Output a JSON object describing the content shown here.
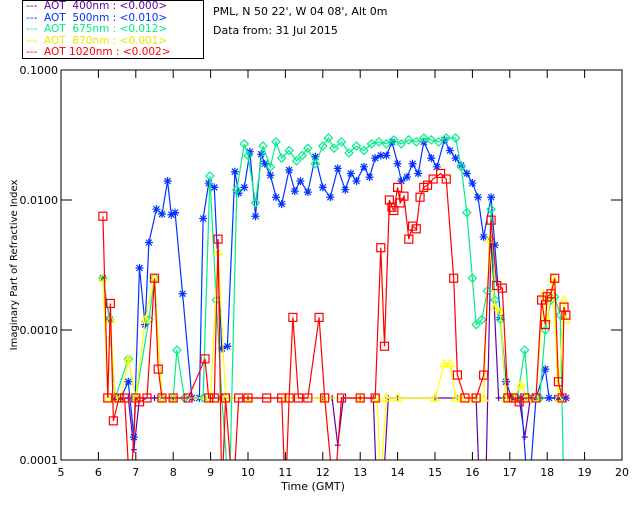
{
  "header": {
    "site": "PML, N 50 22', W 04 08', Alt 0m",
    "date": "Data from: 31 Jul 2015"
  },
  "colors": {
    "aot400": "#6600aa",
    "aot500": "#0033ff",
    "aot675": "#00ee88",
    "aot870": "#ffff00",
    "aot1020": "#ff0000"
  },
  "chart_data": {
    "type": "line",
    "title": "",
    "xlabel": "Time (GMT)",
    "ylabel": "Imaginary Part of Refractive Index",
    "xlim": [
      5,
      20
    ],
    "ylim": [
      0.0001,
      0.1
    ],
    "yscale": "log",
    "x_ticks": [
      "5",
      "6",
      "7",
      "8",
      "9",
      "10",
      "11",
      "12",
      "13",
      "14",
      "15",
      "16",
      "17",
      "18",
      "19",
      "20"
    ],
    "y_ticks": [
      "0.0001",
      "0.0010",
      "0.0100",
      "0.1000"
    ],
    "grid": false,
    "legend_position": "top-left-outside",
    "series": [
      {
        "name": "AOT  400nm : <0.000>",
        "label": "---  AOT  400nm : <0.000>",
        "color": "#6600aa",
        "marker": "plus",
        "x": [
          6.12,
          6.3,
          6.45,
          6.6,
          6.8,
          6.95,
          7.1,
          7.5,
          8.0,
          8.5,
          9.0,
          9.5,
          10.0,
          11.0,
          12.0,
          12.25,
          12.4,
          12.55,
          13.0,
          13.35,
          13.45,
          13.6,
          13.75,
          14.0,
          15.0,
          15.6,
          16.1,
          16.2,
          16.35,
          16.5,
          16.7,
          17.0,
          17.25,
          17.4,
          17.55,
          17.8,
          18.2,
          18.5
        ],
        "y": [
          0.0025,
          0.0012,
          0.0003,
          0.0003,
          0.0003,
          0.00012,
          0.0003,
          0.0003,
          0.0003,
          0.0003,
          0.0003,
          0.0003,
          0.0003,
          0.0003,
          0.0003,
          0.0003,
          0.00013,
          0.0003,
          0.0003,
          0.0003,
          5e-05,
          5e-05,
          0.0003,
          0.0003,
          0.0003,
          0.0003,
          0.0003,
          5e-05,
          5e-05,
          0.005,
          0.0003,
          0.0003,
          0.0003,
          0.00015,
          0.0003,
          0.0003,
          0.0003,
          0.0003
        ]
      },
      {
        "name": "AOT  500nm : <0.010>",
        "label": "---  AOT  500nm : <0.010>",
        "color": "#0033ff",
        "marker": "asterisk",
        "x": [
          6.12,
          6.3,
          6.45,
          6.6,
          6.8,
          6.95,
          7.1,
          7.25,
          7.35,
          7.55,
          7.7,
          7.85,
          7.95,
          8.05,
          8.25,
          8.5,
          8.7,
          8.8,
          8.95,
          9.1,
          9.3,
          9.45,
          9.65,
          9.75,
          9.9,
          10.05,
          10.2,
          10.35,
          10.45,
          10.6,
          10.75,
          10.9,
          11.1,
          11.25,
          11.4,
          11.6,
          11.8,
          12.0,
          12.2,
          12.4,
          12.6,
          12.75,
          12.9,
          13.1,
          13.25,
          13.4,
          13.55,
          13.7,
          13.85,
          14.0,
          14.1,
          14.25,
          14.4,
          14.55,
          14.7,
          14.9,
          15.05,
          15.25,
          15.4,
          15.55,
          15.7,
          15.85,
          16.0,
          16.15,
          16.3,
          16.5,
          16.6,
          16.75,
          16.9,
          17.05,
          17.3,
          17.5,
          17.7,
          17.95,
          18.05,
          18.3,
          18.5
        ],
        "y": [
          0.0025,
          0.0012,
          0.0003,
          0.0003,
          0.0004,
          0.00015,
          0.003,
          0.0011,
          0.0047,
          0.0085,
          0.0078,
          0.014,
          0.0077,
          0.008,
          0.0019,
          0.0003,
          0.0003,
          0.0072,
          0.0135,
          0.0125,
          0.00072,
          0.00075,
          0.0165,
          0.0113,
          0.0125,
          0.0235,
          0.0075,
          0.0225,
          0.019,
          0.0155,
          0.0105,
          0.0093,
          0.017,
          0.0117,
          0.014,
          0.0115,
          0.0215,
          0.0125,
          0.0105,
          0.0175,
          0.012,
          0.016,
          0.014,
          0.018,
          0.015,
          0.021,
          0.022,
          0.022,
          0.028,
          0.019,
          0.014,
          0.015,
          0.019,
          0.016,
          0.028,
          0.021,
          0.018,
          0.029,
          0.024,
          0.021,
          0.0185,
          0.016,
          0.0135,
          0.0105,
          0.0052,
          0.0105,
          0.0045,
          0.00125,
          0.0004,
          0.0003,
          0.0003,
          5e-05,
          0.0003,
          0.0005,
          0.0003,
          0.0003,
          0.0003
        ]
      },
      {
        "name": "AOT  675nm : <0.012>",
        "label": "---  AOT  675nm : <0.012>",
        "color": "#00ee88",
        "marker": "diamond",
        "x": [
          6.12,
          6.3,
          6.45,
          6.8,
          7.0,
          7.35,
          7.5,
          7.7,
          8.0,
          8.1,
          8.3,
          8.8,
          8.98,
          9.15,
          9.3,
          9.5,
          9.7,
          9.9,
          10.0,
          10.2,
          10.4,
          10.6,
          10.75,
          10.9,
          11.1,
          11.3,
          11.45,
          11.6,
          11.8,
          12.0,
          12.15,
          12.3,
          12.5,
          12.7,
          12.9,
          13.1,
          13.3,
          13.5,
          13.7,
          13.9,
          14.1,
          14.3,
          14.5,
          14.7,
          14.9,
          15.1,
          15.3,
          15.55,
          15.7,
          15.85,
          16.0,
          16.1,
          16.25,
          16.4,
          16.5,
          16.6,
          16.75,
          16.9,
          17.2,
          17.4,
          17.5,
          17.8,
          17.95,
          18.1,
          18.2,
          18.35,
          18.45
        ],
        "y": [
          0.0025,
          0.0012,
          0.0003,
          0.0006,
          0.0003,
          0.0012,
          0.0025,
          0.0003,
          0.0003,
          0.0007,
          0.0003,
          0.0003,
          0.0153,
          0.0017,
          0.0003,
          5e-05,
          0.012,
          0.027,
          0.022,
          0.0095,
          0.026,
          0.018,
          0.028,
          0.021,
          0.024,
          0.02,
          0.022,
          0.025,
          0.019,
          0.026,
          0.03,
          0.025,
          0.028,
          0.023,
          0.026,
          0.024,
          0.027,
          0.028,
          0.027,
          0.029,
          0.027,
          0.029,
          0.028,
          0.03,
          0.029,
          0.028,
          0.03,
          0.03,
          0.018,
          0.008,
          0.0025,
          0.0011,
          0.0012,
          0.002,
          0.0085,
          0.0017,
          0.0012,
          0.0003,
          0.0003,
          0.0007,
          0.0003,
          0.0003,
          0.001,
          0.0017,
          0.0018,
          0.0013,
          5e-05
        ]
      },
      {
        "name": "AOT  870nm : <0.001>",
        "label": "---  AOT  870nm : <0.001>",
        "color": "#ffff00",
        "marker": "triangle",
        "x": [
          6.12,
          6.25,
          6.32,
          6.45,
          6.6,
          6.8,
          7.0,
          7.25,
          7.5,
          7.7,
          8.0,
          9.0,
          9.2,
          9.4,
          10.0,
          11.0,
          12.0,
          13.0,
          13.45,
          13.55,
          13.7,
          14.0,
          15.0,
          15.25,
          15.4,
          15.55,
          15.7,
          16.0,
          16.3,
          16.45,
          16.6,
          16.75,
          16.9,
          17.1,
          17.3,
          17.45,
          17.7,
          17.9,
          18.0,
          18.15,
          18.3,
          18.45,
          18.5
        ],
        "y": [
          0.0025,
          0.0003,
          0.0012,
          0.0003,
          0.0003,
          0.0006,
          0.0003,
          0.0012,
          0.0025,
          0.0003,
          0.0003,
          0.0003,
          0.004,
          0.0003,
          0.0003,
          0.0003,
          0.0003,
          0.0003,
          0.0003,
          7e-05,
          0.0003,
          0.0003,
          0.0003,
          0.00055,
          0.00055,
          0.0003,
          0.0003,
          0.0003,
          0.0003,
          0.005,
          0.0015,
          0.0014,
          0.0003,
          0.0003,
          0.00038,
          0.0003,
          0.0003,
          0.0019,
          0.0012,
          0.0025,
          0.0003,
          0.0017,
          0.0012
        ]
      },
      {
        "name": "AOT 1020nm : <0.002>",
        "label": "---  AOT 1020nm : <0.002>",
        "color": "#ff0000",
        "marker": "square",
        "x": [
          6.12,
          6.25,
          6.32,
          6.4,
          6.55,
          6.7,
          6.85,
          7.0,
          7.1,
          7.3,
          7.5,
          7.6,
          7.7,
          8.0,
          8.4,
          8.85,
          8.95,
          9.1,
          9.2,
          9.3,
          9.4,
          9.6,
          9.75,
          10.0,
          10.5,
          10.9,
          11.0,
          11.1,
          11.2,
          11.35,
          11.6,
          11.9,
          12.05,
          12.3,
          12.5,
          13.0,
          13.4,
          13.55,
          13.65,
          13.78,
          13.85,
          13.9,
          14.0,
          14.07,
          14.17,
          14.3,
          14.4,
          14.5,
          14.6,
          14.7,
          14.8,
          14.95,
          15.15,
          15.3,
          15.5,
          15.6,
          15.8,
          16.1,
          16.3,
          16.5,
          16.65,
          16.8,
          16.95,
          17.1,
          17.25,
          17.4,
          17.7,
          17.85,
          17.95,
          18.0,
          18.1,
          18.2,
          18.3,
          18.4,
          18.45,
          18.5
        ],
        "y": [
          0.0075,
          0.0003,
          0.0016,
          0.0002,
          0.0003,
          0.0003,
          5e-05,
          0.0003,
          0.00028,
          0.0003,
          0.0025,
          0.0005,
          0.0003,
          0.0003,
          0.0003,
          0.0006,
          0.0003,
          0.0003,
          0.005,
          5e-05,
          0.0003,
          5e-05,
          0.0003,
          0.0003,
          0.0003,
          0.0003,
          5e-05,
          0.0003,
          0.00125,
          0.0003,
          0.0003,
          0.00125,
          0.0003,
          5e-05,
          0.0003,
          0.0003,
          0.0003,
          0.0043,
          0.00075,
          0.01,
          0.0088,
          0.0083,
          0.0125,
          0.0095,
          0.0107,
          0.005,
          0.0063,
          0.006,
          0.0105,
          0.0125,
          0.013,
          0.0145,
          0.016,
          0.0145,
          0.0025,
          0.00045,
          0.0003,
          0.0003,
          0.00045,
          0.007,
          0.0022,
          0.0021,
          0.0003,
          0.0003,
          0.00028,
          0.0003,
          0.0003,
          0.0017,
          0.0011,
          0.0018,
          0.0019,
          0.0025,
          0.0004,
          0.0003,
          0.0015,
          0.0013
        ]
      }
    ]
  }
}
